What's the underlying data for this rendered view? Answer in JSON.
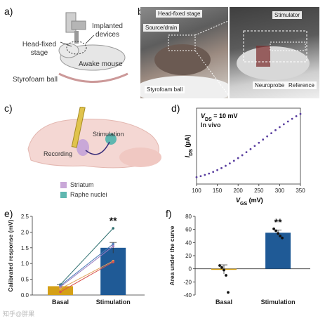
{
  "panels": {
    "a": {
      "letter": "a)",
      "labels": {
        "implanted": "Implanted devices",
        "stage": "Head-fixed stage",
        "mouse": "Awake mouse",
        "ball": "Styrofoam ball"
      }
    },
    "b": {
      "letter": "b)",
      "labels": {
        "stage": "Head-fixed stage",
        "source": "Source/drain",
        "ball": "Styrofoam ball",
        "stimulator": "Stimulator",
        "neuroprobe": "Neuroprobe",
        "reference": "Reference"
      }
    },
    "c": {
      "letter": "c)",
      "labels": {
        "stimulation": "Stimulation",
        "recording": "Recording"
      },
      "legend": [
        {
          "label": "Striatum",
          "color": "#c9a8d8"
        },
        {
          "label": "Raphe nuclei",
          "color": "#5fb7b0"
        }
      ]
    },
    "d": {
      "letter": "d)"
    },
    "e": {
      "letter": "e)"
    },
    "f": {
      "letter": "f)"
    }
  },
  "chart_data": [
    {
      "panel": "d",
      "type": "scatter",
      "annotation": {
        "line1": "V",
        "sub1": "DS",
        "rest1": " = 10 mV",
        "line2": "In vivo"
      },
      "ylabel": {
        "main": "I",
        "sub": "DS",
        "unit": " (μA)"
      },
      "xlabel": {
        "main": "V",
        "sub": "GS",
        "unit": " (mV)"
      },
      "x_ticks": [
        "100",
        "150",
        "200",
        "250",
        "300",
        "350"
      ],
      "xlim": [
        100,
        350
      ],
      "ylim": [
        0,
        5
      ],
      "color": "#5a3fa0",
      "x": [
        100,
        110,
        120,
        130,
        140,
        150,
        160,
        170,
        180,
        190,
        200,
        210,
        220,
        230,
        240,
        250,
        260,
        270,
        280,
        290,
        300,
        310,
        320,
        330,
        340,
        350
      ],
      "y": [
        0.45,
        0.52,
        0.6,
        0.69,
        0.8,
        0.92,
        1.05,
        1.2,
        1.36,
        1.53,
        1.71,
        1.9,
        2.1,
        2.3,
        2.51,
        2.72,
        2.93,
        3.14,
        3.35,
        3.55,
        3.75,
        3.94,
        4.12,
        4.3,
        4.47,
        4.62
      ]
    },
    {
      "panel": "e",
      "type": "bar",
      "ylabel": "Calibrated response (mV)",
      "categories": [
        "Basal",
        "Stimulation"
      ],
      "values": [
        0.28,
        1.5
      ],
      "errors": [
        0.05,
        0.17
      ],
      "bar_colors": [
        "#d4a017",
        "#1f5a96"
      ],
      "ylim": [
        0,
        2.5
      ],
      "y_ticks": [
        "0.0",
        "0.5",
        "1.0",
        "1.5",
        "2.0",
        "2.5"
      ],
      "significance": "**",
      "paired_lines": [
        {
          "from": 0.33,
          "to": 2.12,
          "color": "#2e6f6f"
        },
        {
          "from": 0.3,
          "to": 1.62,
          "color": "#4f7db8"
        },
        {
          "from": 0.26,
          "to": 1.55,
          "color": "#9a7bc0"
        },
        {
          "from": 0.2,
          "to": 1.08,
          "color": "#e2a25a"
        },
        {
          "from": 0.1,
          "to": 1.05,
          "color": "#d9534f"
        }
      ]
    },
    {
      "panel": "f",
      "type": "bar",
      "ylabel": "Area under the curve",
      "categories": [
        "Basal",
        "Stimulation"
      ],
      "values": [
        -1,
        55
      ],
      "errors": [
        7,
        4
      ],
      "bar_colors": [
        "#d4a017",
        "#1f5a96"
      ],
      "ylim": [
        -40,
        80
      ],
      "y_ticks": [
        "-40",
        "-20",
        "0",
        "20",
        "40",
        "60",
        "80"
      ],
      "significance": "**",
      "points": [
        {
          "cat": 0,
          "vals": [
            5,
            2,
            -2,
            -10,
            -36
          ]
        },
        {
          "cat": 1,
          "vals": [
            61,
            58,
            54,
            50,
            47
          ]
        }
      ]
    }
  ],
  "watermark": "知乎@胖果"
}
